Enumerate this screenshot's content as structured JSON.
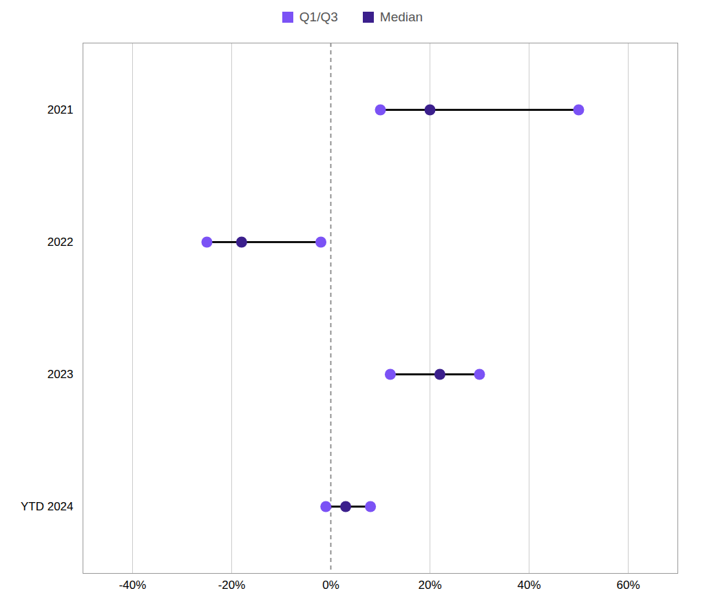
{
  "chart_data": {
    "type": "dumbbell",
    "categories": [
      "2021",
      "2022",
      "2023",
      "YTD 2024"
    ],
    "color": "#111111",
    "series": [
      {
        "name": "Q1/Q3",
        "color": "#7B52F5",
        "q1": [
          10,
          -25,
          12,
          -1
        ],
        "q3": [
          50,
          -2,
          30,
          8
        ]
      },
      {
        "name": "Median",
        "color": "#3B1F8C",
        "values": [
          20,
          -18,
          22,
          3
        ]
      }
    ],
    "xlim": [
      -50,
      70
    ],
    "xticks": [
      {
        "value": -40,
        "label": "-40%"
      },
      {
        "value": -20,
        "label": "-20%"
      },
      {
        "value": 0,
        "label": "0%"
      },
      {
        "value": 20,
        "label": "20%"
      },
      {
        "value": 40,
        "label": "40%"
      },
      {
        "value": 60,
        "label": "60%"
      }
    ],
    "grid": true,
    "legend": "top"
  }
}
